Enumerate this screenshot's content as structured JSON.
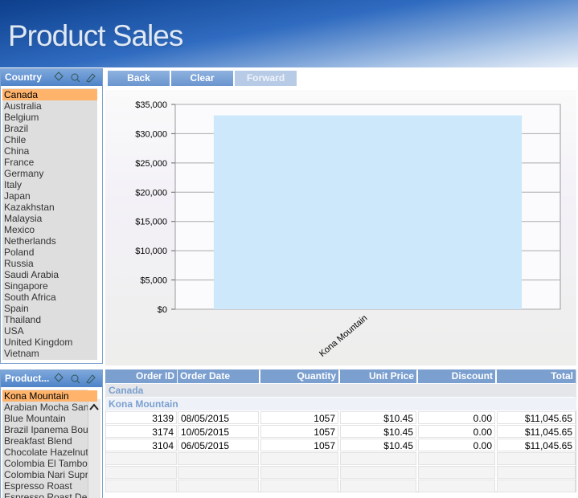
{
  "header": {
    "title": "Product Sales"
  },
  "country_filter": {
    "title": "Country",
    "selected": 0,
    "items": [
      "Canada",
      "Australia",
      "Belgium",
      "Brazil",
      "Chile",
      "China",
      "France",
      "Germany",
      "Italy",
      "Japan",
      "Kazakhstan",
      "Malaysia",
      "Mexico",
      "Netherlands",
      "Poland",
      "Russia",
      "Saudi Arabia",
      "Singapore",
      "South Africa",
      "Spain",
      "Thailand",
      "USA",
      "United Kingdom",
      "Vietnam"
    ]
  },
  "product_filter": {
    "title": "Product...",
    "selected": 0,
    "items": [
      "Kona Mountain",
      "Arabian Mocha San",
      "Blue Mountain",
      "Brazil Ipanema Bou",
      "Breakfast Blend",
      "Chocolate Hazelnut",
      "Colombia El Tambo",
      "Colombia Nari Supr",
      "Espresso Roast",
      "Espresso Roast De"
    ]
  },
  "buttons": [
    "Back",
    "Clear",
    "Forward"
  ],
  "chart_data": {
    "type": "bar",
    "categories": [
      "Kona Mountain"
    ],
    "values": [
      33137
    ],
    "color": "#cde8fb",
    "ylim": [
      0,
      35000
    ],
    "yticks": [
      {
        "value": 0,
        "label": "$0"
      },
      {
        "value": 5000,
        "label": "$5,000"
      },
      {
        "value": 10000,
        "label": "$10,000"
      },
      {
        "value": 15000,
        "label": "$15,000"
      },
      {
        "value": 20000,
        "label": "$20,000"
      },
      {
        "value": 25000,
        "label": "$25,000"
      },
      {
        "value": 30000,
        "label": "$30,000"
      },
      {
        "value": 35000,
        "label": "$35,000"
      }
    ],
    "grid": true
  },
  "table": {
    "columns": [
      "Order ID",
      "Order Date",
      "Quantity",
      "Unit Price",
      "Discount",
      "Total"
    ],
    "groups": [
      "Canada",
      "Kona Mountain"
    ],
    "rows": [
      [
        "3139",
        "08/05/2015",
        "1057",
        "$10.45",
        "0.00",
        "$11,045.65"
      ],
      [
        "3174",
        "10/05/2015",
        "1057",
        "$10.45",
        "0.00",
        "$11,045.65"
      ],
      [
        "3104",
        "06/05/2015",
        "1057",
        "$10.45",
        "0.00",
        "$11,045.65"
      ]
    ]
  }
}
